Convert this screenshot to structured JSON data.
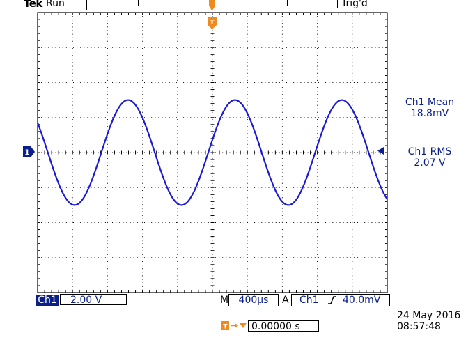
{
  "header": {
    "brand": "Tek",
    "run_status": "Run",
    "trigger_state": "Trig'd"
  },
  "markers": {
    "trigger_position": "T",
    "channel_ground": "1"
  },
  "measurements": {
    "mean": {
      "label": "Ch1 Mean",
      "value": "18.8mV"
    },
    "rms": {
      "label": "Ch1 RMS",
      "value": "2.07 V"
    }
  },
  "status_bar": {
    "channel": "Ch1",
    "vertical_scale": "2.00 V",
    "horizontal_prefix": "M",
    "horizontal_scale": "400µs",
    "trigger_prefix": "A",
    "trigger_source": "Ch1",
    "trigger_slope_icon": "rising-edge-icon",
    "trigger_level": "40.0mV",
    "trigger_delay_icon": "trigger-delay-icon",
    "trigger_delay": "0.00000 s"
  },
  "datetime": {
    "date": "24 May 2016",
    "time": "08:57:48"
  },
  "waveform": {
    "color": "#1a1ad6",
    "grid_color": "#000000",
    "trigger_marker_color": "#f08a1c",
    "channel_color": "#0b1f8a",
    "amplitude_divisions": 1.5,
    "cycles_on_screen": 3.27,
    "phase_at_left_divisions": 0.85
  }
}
